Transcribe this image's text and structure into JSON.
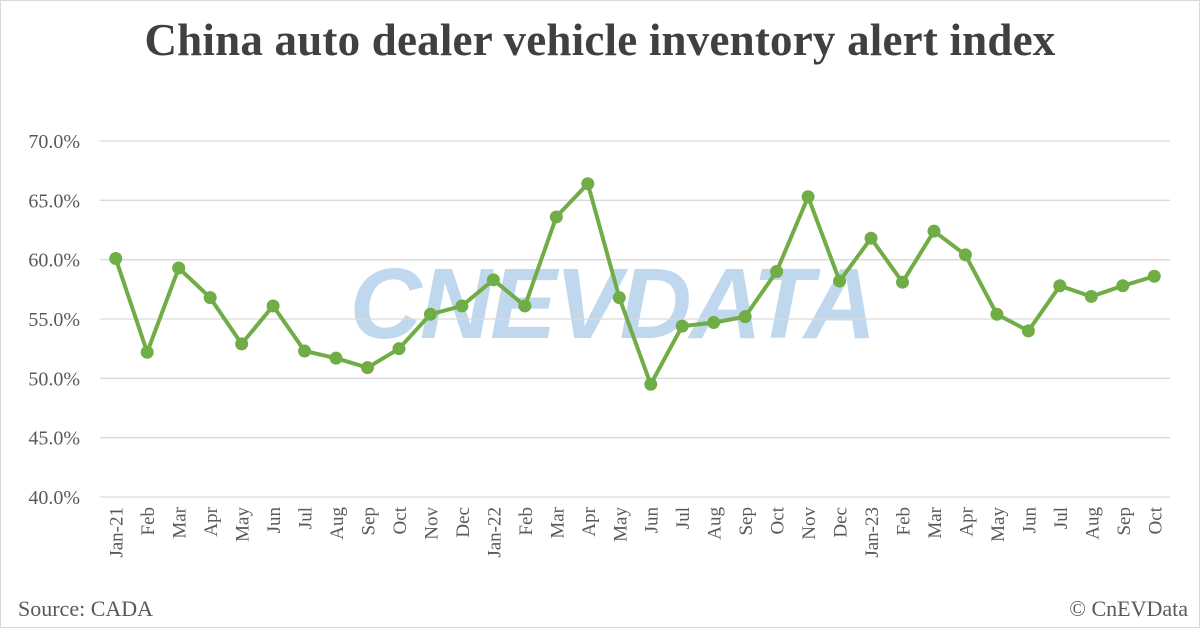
{
  "title": "China auto dealer vehicle inventory alert index",
  "source": "Source: CADA",
  "copyright": "© CnEVData",
  "watermark": "CNEVDATA",
  "colors": {
    "line": "#70ad47",
    "grid": "#d9d9d9",
    "text": "#595959",
    "watermark": "#5b9bd5"
  },
  "chart_data": {
    "type": "line",
    "title": "China auto dealer vehicle inventory alert index",
    "xlabel": "",
    "ylabel": "",
    "ylim": [
      40.0,
      70.0
    ],
    "yticks": [
      "40.0%",
      "45.0%",
      "50.0%",
      "55.0%",
      "60.0%",
      "65.0%",
      "70.0%"
    ],
    "grid": true,
    "legend": "none",
    "categories": [
      "Jan-21",
      "Feb",
      "Mar",
      "Apr",
      "May",
      "Jun",
      "Jul",
      "Aug",
      "Sep",
      "Oct",
      "Nov",
      "Dec",
      "Jan-22",
      "Feb",
      "Mar",
      "Apr",
      "May",
      "Jun",
      "Jul",
      "Aug",
      "Sep",
      "Oct",
      "Nov",
      "Dec",
      "Jan-23",
      "Feb",
      "Mar",
      "Apr",
      "May",
      "Jun",
      "Jul",
      "Aug",
      "Sep",
      "Oct"
    ],
    "series": [
      {
        "values": [
          60.1,
          52.2,
          59.3,
          56.8,
          52.9,
          56.1,
          52.3,
          51.7,
          50.9,
          52.5,
          55.4,
          56.1,
          58.3,
          56.1,
          63.6,
          66.4,
          56.8,
          49.5,
          54.4,
          54.7,
          55.2,
          59.0,
          65.3,
          58.2,
          61.8,
          58.1,
          62.4,
          60.4,
          55.4,
          54.0,
          57.8,
          56.9,
          57.8,
          58.6
        ]
      }
    ]
  }
}
